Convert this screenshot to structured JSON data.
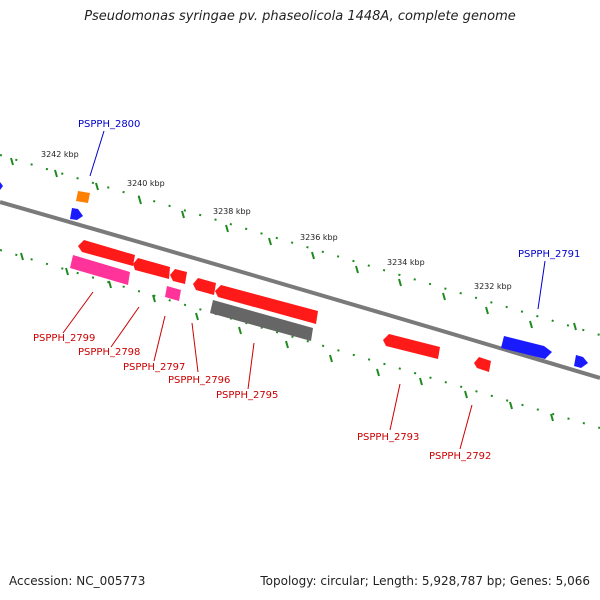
{
  "title": "Pseudomonas syringae pv. phaseolicola 1448A, complete genome",
  "accession_text": "Accession: NC_005773",
  "info_text": "Topology: circular; Length: 5,928,787 bp; Genes: 5,066",
  "colors": {
    "forward_cds": "#1a1aff",
    "reverse_cds": "#ff0000",
    "rna": "#ff8000",
    "pseudo": "#ff3399",
    "other": "#666666",
    "backbone": "#7a7a7a",
    "tick": "#1f8a1f",
    "forward_label": "#0000cc",
    "reverse_label": "#cc0000"
  },
  "ticks": [
    "3242 kbp",
    "3240 kbp",
    "3238 kbp",
    "3236 kbp",
    "3234 kbp",
    "3232 kbp"
  ],
  "forward_labels": [
    "PSPPH_2800",
    "PSPPH_2791"
  ],
  "reverse_labels": [
    "PSPPH_2799",
    "PSPPH_2798",
    "PSPPH_2797",
    "PSPPH_2796",
    "PSPPH_2795",
    "PSPPH_2793",
    "PSPPH_2792"
  ]
}
